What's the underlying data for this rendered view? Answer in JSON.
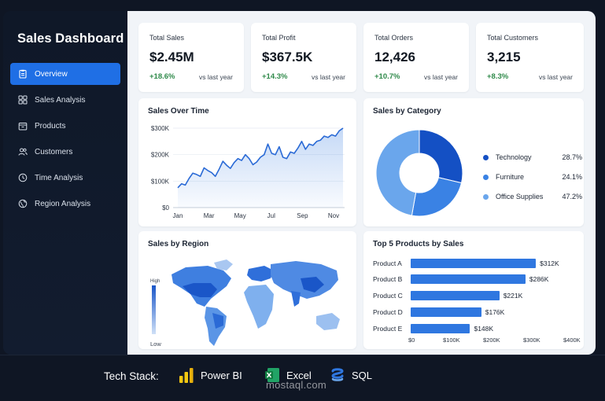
{
  "brand": "Sales Dashboard",
  "nav": [
    {
      "label": "Overview",
      "icon": "clipboard-icon",
      "active": true
    },
    {
      "label": "Sales Analysis",
      "icon": "grid-icon",
      "active": false
    },
    {
      "label": "Products",
      "icon": "box-icon",
      "active": false
    },
    {
      "label": "Customers",
      "icon": "users-icon",
      "active": false
    },
    {
      "label": "Time Analysis",
      "icon": "clock-icon",
      "active": false
    },
    {
      "label": "Region Analysis",
      "icon": "globe-icon",
      "active": false
    }
  ],
  "kpis": [
    {
      "title": "Total Sales",
      "value": "$2.45M",
      "change": "+18.6%",
      "sub": "vs last year"
    },
    {
      "title": "Total Profit",
      "value": "$367.5K",
      "change": "+14.3%",
      "sub": "vs last year"
    },
    {
      "title": "Total Orders",
      "value": "12,426",
      "change": "+10.7%",
      "sub": "vs last year"
    },
    {
      "title": "Total Customers",
      "value": "3,215",
      "change": "+8.3%",
      "sub": "vs last year"
    }
  ],
  "titles": {
    "sales_over_time": "Sales Over Time",
    "sales_by_category": "Sales by Category",
    "sales_by_region": "Sales by Region",
    "top_products": "Top 5 Products by Sales"
  },
  "region": {
    "high_label": "High",
    "low_label": "Low"
  },
  "colors": {
    "accent": "#1f6fe5",
    "positive": "#2f8a4a",
    "sidebar": "#0f1828"
  },
  "chart_data": [
    {
      "type": "line",
      "title": "Sales Over Time",
      "x_ticks": [
        "Jan",
        "Mar",
        "May",
        "Jul",
        "Sep",
        "Nov"
      ],
      "y_ticks": [
        "$0",
        "$100K",
        "$200K",
        "$300K"
      ],
      "ylim": [
        0,
        300
      ],
      "series": [
        {
          "values": [
            75,
            90,
            85,
            110,
            130,
            125,
            118,
            150,
            140,
            132,
            118,
            145,
            175,
            160,
            148,
            170,
            185,
            178,
            200,
            185,
            162,
            172,
            190,
            200,
            240,
            205,
            200,
            230,
            190,
            185,
            210,
            205,
            225,
            250,
            220,
            240,
            235,
            250,
            255,
            270,
            265,
            275,
            270,
            290,
            300
          ]
        }
      ]
    },
    {
      "type": "pie",
      "title": "Sales by Category",
      "slices": [
        {
          "label": "Technology",
          "value": 28.7,
          "pct_label": "28.7%",
          "color": "#1450c4"
        },
        {
          "label": "Furniture",
          "value": 24.1,
          "pct_label": "24.1%",
          "color": "#3a82e4"
        },
        {
          "label": "Office Supplies",
          "value": 47.2,
          "pct_label": "47.2%",
          "color": "#6aa6ec"
        }
      ]
    },
    {
      "type": "bar",
      "title": "Top 5 Products by Sales",
      "categories": [
        "Product A",
        "Product B",
        "Product C",
        "Product D",
        "Product E"
      ],
      "values": [
        312,
        286,
        221,
        176,
        148
      ],
      "value_labels": [
        "$312K",
        "$286K",
        "$221K",
        "$176K",
        "$148K"
      ],
      "x_ticks": [
        "$0",
        "$100K",
        "$200K",
        "$300K",
        "$400K"
      ],
      "xlim": [
        0,
        400
      ]
    }
  ],
  "footer": {
    "title": "Tech Stack:",
    "items": [
      {
        "label": "Power BI",
        "icon": "power-bi-icon"
      },
      {
        "label": "Excel",
        "icon": "excel-icon"
      },
      {
        "label": "SQL",
        "icon": "sql-icon"
      }
    ],
    "watermark": "mostaql.com"
  }
}
